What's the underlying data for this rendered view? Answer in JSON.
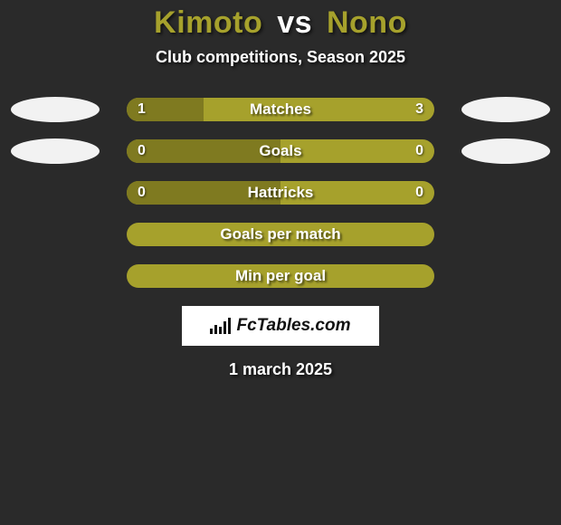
{
  "colors": {
    "background": "#2a2a2a",
    "olive": "#a6a12c",
    "olive_dark": "#7f7a20",
    "white": "#ffffff",
    "ellipse": "#f2f2f2",
    "logo_bg": "#ffffff",
    "logo_fg": "#111111"
  },
  "title": {
    "name_a": "Kimoto",
    "vs": "vs",
    "name_b": "Nono",
    "fontsize": 34
  },
  "subtitle": "Club competitions, Season 2025",
  "bar": {
    "track_width": 340,
    "height": 26,
    "radius": 13,
    "label_fontsize": 17,
    "value_fontsize": 16
  },
  "rows": [
    {
      "label": "Matches",
      "left_val": "1",
      "right_val": "3",
      "left_num": 1,
      "right_num": 3,
      "show_values": true,
      "show_ellipses": true
    },
    {
      "label": "Goals",
      "left_val": "0",
      "right_val": "0",
      "left_num": 0,
      "right_num": 0,
      "show_values": true,
      "show_ellipses": true
    },
    {
      "label": "Hattricks",
      "left_val": "0",
      "right_val": "0",
      "left_num": 0,
      "right_num": 0,
      "show_values": true,
      "show_ellipses": false
    },
    {
      "label": "Goals per match",
      "left_val": "",
      "right_val": "",
      "left_num": 0,
      "right_num": 0,
      "show_values": false,
      "show_ellipses": false
    },
    {
      "label": "Min per goal",
      "left_val": "",
      "right_val": "",
      "left_num": 0,
      "right_num": 0,
      "show_values": false,
      "show_ellipses": false
    }
  ],
  "logo": {
    "text": "FcTables.com"
  },
  "date": "1 march 2025"
}
